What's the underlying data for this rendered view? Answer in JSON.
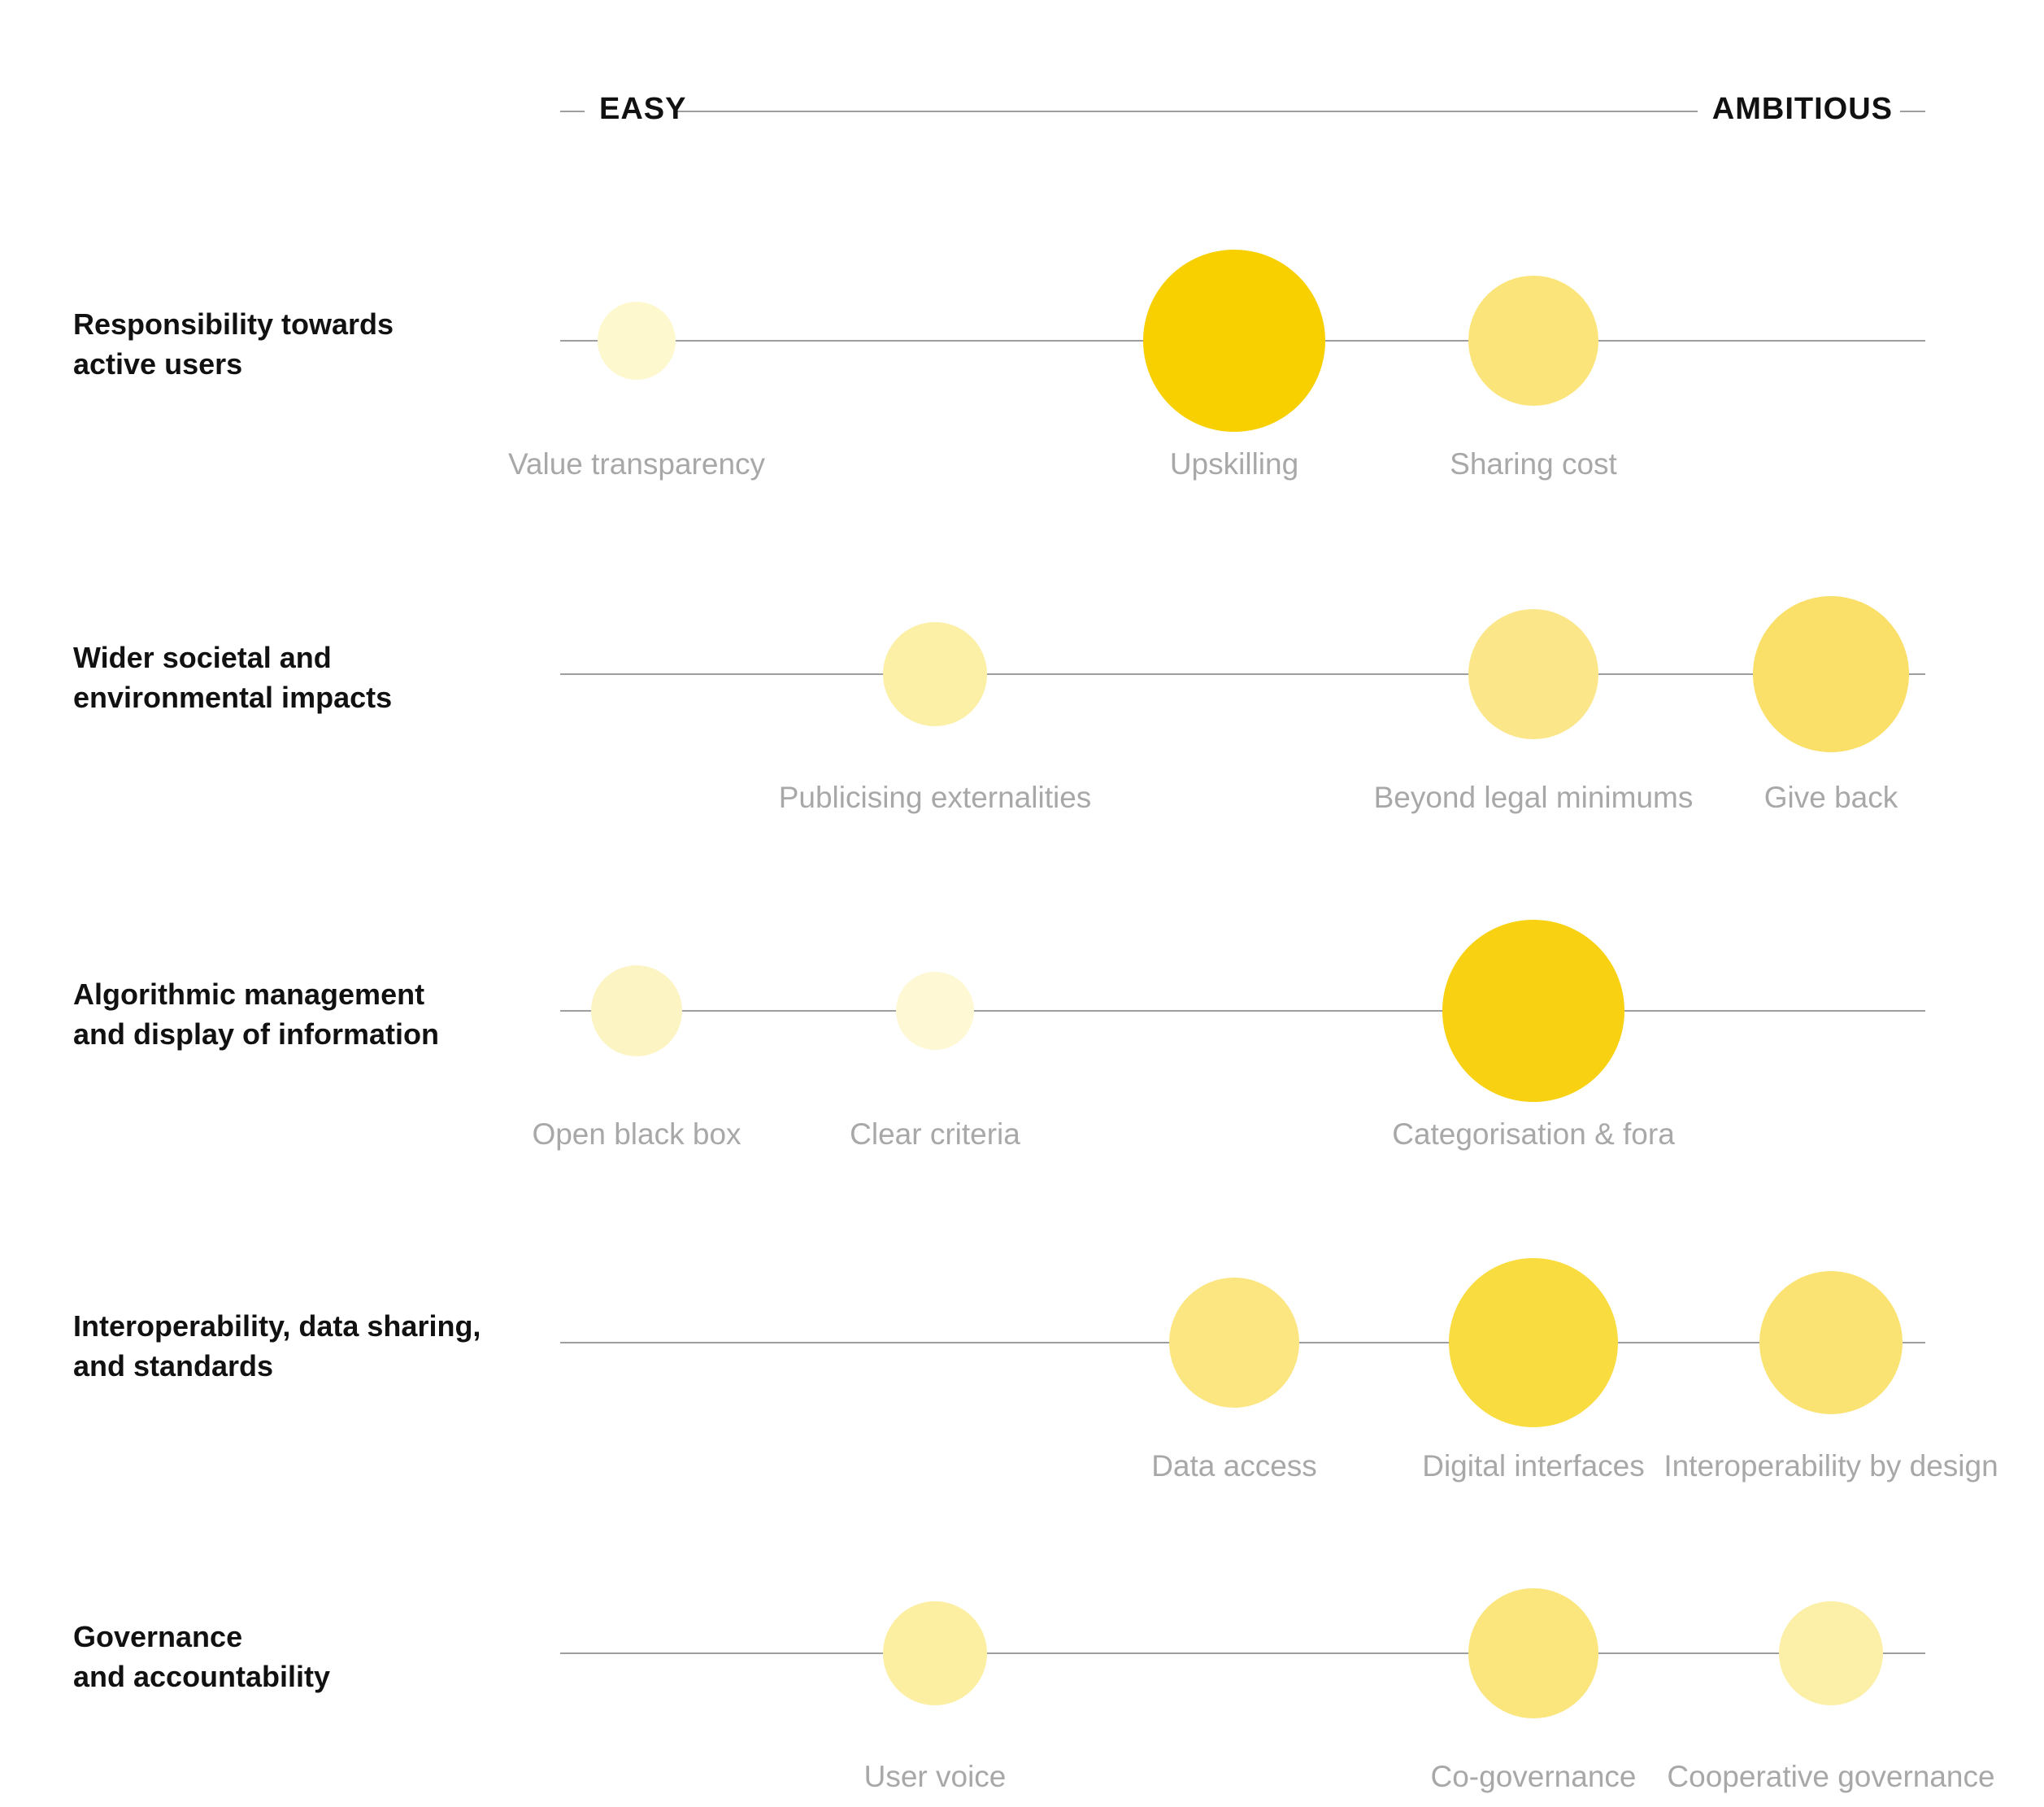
{
  "scale": {
    "easy_label": "EASY",
    "ambitious_label": "AMBITIOUS"
  },
  "colors": {
    "line": "#9e9e9e",
    "row_label": "#111111",
    "item_label": "#a8a8a8"
  },
  "rows": [
    {
      "label_lines": [
        "Responsibility towards",
        "active users"
      ],
      "items": [
        {
          "label": "Value transparency",
          "position": 0,
          "level": 1,
          "color": "#FEF8CF"
        },
        {
          "label": "Upskilling",
          "position": 2,
          "level": 5,
          "color": "#F8D000"
        },
        {
          "label": "Sharing cost",
          "position": 3,
          "level": 3,
          "color": "#FBE57A"
        }
      ]
    },
    {
      "label_lines": [
        "Wider societal and",
        "environmental impacts"
      ],
      "items": [
        {
          "label": "Publicising externalities",
          "position": 1,
          "level": 2,
          "color": "#FCEFA6"
        },
        {
          "label": "Beyond legal minimums",
          "position": 3,
          "level": 3,
          "color": "#FBE68A"
        },
        {
          "label": "Give back",
          "position": 4,
          "level": 4,
          "color": "#FAE069"
        }
      ]
    },
    {
      "label_lines": [
        "Algorithmic management",
        "and display of information"
      ],
      "items": [
        {
          "label": "Open black box",
          "position": 0,
          "level": 1.5,
          "color": "#FDF4C3"
        },
        {
          "label": "Clear criteria",
          "position": 1,
          "level": 1,
          "color": "#FEF8D4"
        },
        {
          "label": "Categorisation & fora",
          "position": 3,
          "level": 5,
          "color": "#F8D112"
        }
      ]
    },
    {
      "label_lines": [
        "Interoperability, data sharing,",
        "and standards"
      ],
      "items": [
        {
          "label": "Data access",
          "position": 2,
          "level": 3,
          "color": "#FBE682"
        },
        {
          "label": "Digital interfaces",
          "position": 3,
          "level": 4.5,
          "color": "#F9DC3F"
        },
        {
          "label": "Interoperability by design",
          "position": 4,
          "level": 3.5,
          "color": "#FAE373"
        }
      ]
    },
    {
      "label_lines": [
        "Governance",
        "and accountability"
      ],
      "items": [
        {
          "label": "User voice",
          "position": 1,
          "level": 2,
          "color": "#FCEFA2"
        },
        {
          "label": "Co-governance",
          "position": 3,
          "level": 3,
          "color": "#FBE57D"
        },
        {
          "label": "Cooperative governance",
          "position": 4,
          "level": 2,
          "color": "#FCEFA7"
        }
      ]
    }
  ]
}
